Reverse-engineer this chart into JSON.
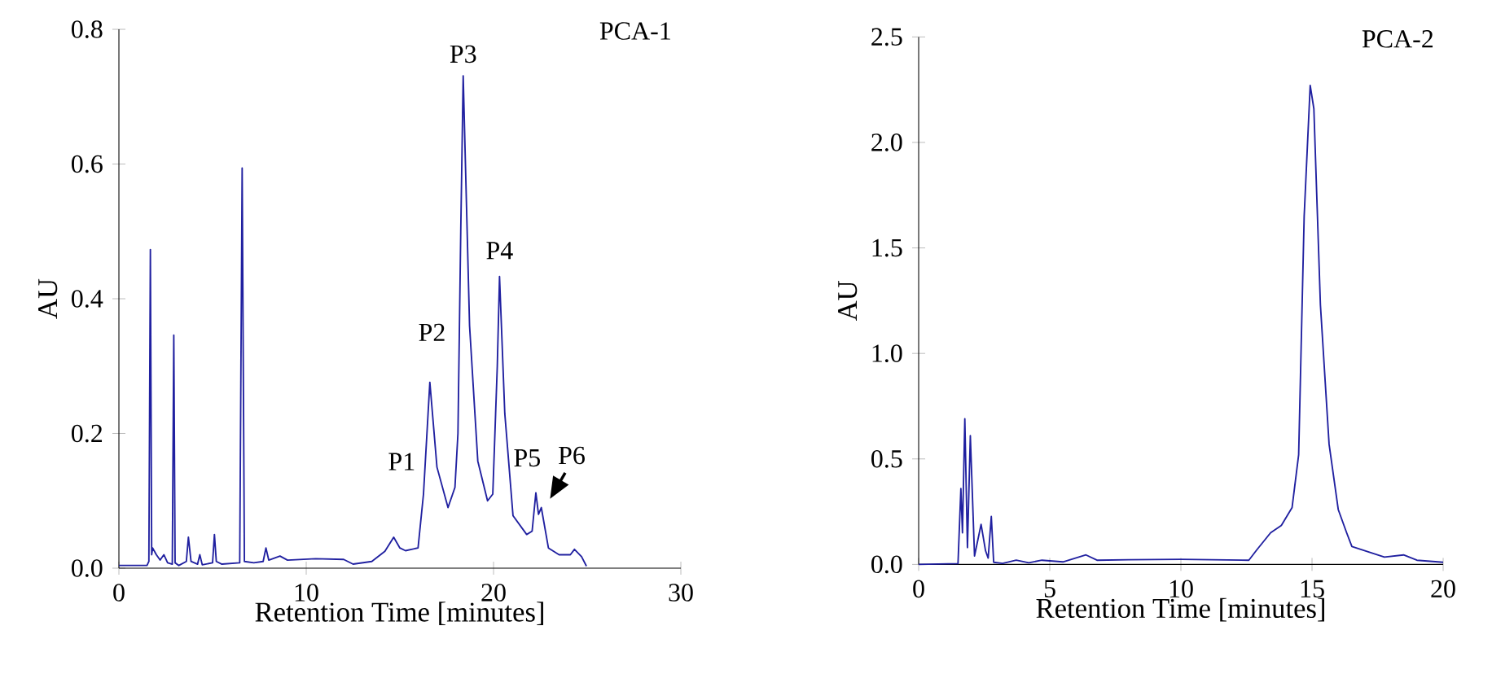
{
  "chart_data": [
    {
      "type": "line",
      "title": "PCA-1",
      "xlabel": "Retention Time [minutes]",
      "ylabel": "AU",
      "xlim": [
        0,
        30
      ],
      "ylim": [
        0,
        0.8
      ],
      "xticks": [
        0,
        10,
        20,
        30
      ],
      "yticks": [
        {
          "value": 0,
          "label": "0.0"
        },
        {
          "value": 0.2,
          "label": "0.2"
        },
        {
          "value": 0.4,
          "label": "0.4"
        },
        {
          "value": 0.6,
          "label": "0.6"
        },
        {
          "value": 0.8,
          "label": "0.8"
        }
      ],
      "series": [
        {
          "color": "#2020a0",
          "x": [
            0,
            1.5,
            1.6,
            1.68,
            1.75,
            1.8,
            2.0,
            2.2,
            2.4,
            2.6,
            2.85,
            2.93,
            3.0,
            3.2,
            3.6,
            3.71,
            3.85,
            4.2,
            4.32,
            4.45,
            5.0,
            5.1,
            5.2,
            5.5,
            6.45,
            6.58,
            6.7,
            7.2,
            7.7,
            7.85,
            8.0,
            8.6,
            9.0,
            10.5,
            12.0,
            12.5,
            13.5,
            14.2,
            14.67,
            15.0,
            15.3,
            15.97,
            16.26,
            16.6,
            16.98,
            17.57,
            17.94,
            18.1,
            18.25,
            18.38,
            18.72,
            19.16,
            19.68,
            19.96,
            20.2,
            20.32,
            20.6,
            21.04,
            21.77,
            22.06,
            22.26,
            22.4,
            22.55,
            22.93,
            23.5,
            24.1,
            24.32,
            24.7,
            24.96
          ],
          "values": [
            0.004,
            0.004,
            0.01,
            0.473,
            0.02,
            0.03,
            0.02,
            0.012,
            0.02,
            0.008,
            0.006,
            0.346,
            0.008,
            0.004,
            0.01,
            0.046,
            0.01,
            0.006,
            0.02,
            0.005,
            0.008,
            0.05,
            0.01,
            0.006,
            0.008,
            0.594,
            0.01,
            0.008,
            0.01,
            0.03,
            0.012,
            0.018,
            0.012,
            0.014,
            0.013,
            0.006,
            0.01,
            0.025,
            0.046,
            0.03,
            0.026,
            0.03,
            0.11,
            0.276,
            0.15,
            0.09,
            0.12,
            0.2,
            0.5,
            0.731,
            0.36,
            0.159,
            0.1,
            0.11,
            0.3,
            0.433,
            0.23,
            0.078,
            0.05,
            0.055,
            0.112,
            0.08,
            0.09,
            0.03,
            0.02,
            0.02,
            0.028,
            0.017,
            0.003
          ]
        }
      ],
      "annotations": [
        {
          "text": "P1",
          "x": 16.26,
          "y": 0.11
        },
        {
          "text": "P2",
          "x": 16.6,
          "y": 0.276
        },
        {
          "text": "P3",
          "x": 18.38,
          "y": 0.731
        },
        {
          "text": "P4",
          "x": 20.32,
          "y": 0.433
        },
        {
          "text": "P5",
          "x": 22.26,
          "y": 0.112
        },
        {
          "text": "P6",
          "x": 22.55,
          "y": 0.09
        }
      ]
    },
    {
      "type": "line",
      "title": "PCA-2",
      "xlabel": "Retention Time [minutes]",
      "ylabel": "AU",
      "xlim": [
        0,
        20
      ],
      "ylim": [
        0,
        2.5
      ],
      "xticks": [
        0,
        5,
        10,
        15,
        20
      ],
      "yticks": [
        {
          "value": 0,
          "label": "0.0"
        },
        {
          "value": 0.5,
          "label": "0.5"
        },
        {
          "value": 1,
          "label": "1.0"
        },
        {
          "value": 1.5,
          "label": "1.5"
        },
        {
          "value": 2,
          "label": "2.0"
        },
        {
          "value": 2.5,
          "label": "2.5"
        }
      ],
      "series": [
        {
          "color": "#2020a0",
          "x": [
            0,
            1.5,
            1.61,
            1.67,
            1.76,
            1.86,
            1.97,
            2.13,
            2.38,
            2.55,
            2.65,
            2.77,
            2.86,
            3.2,
            3.72,
            4.2,
            4.7,
            5.5,
            6.38,
            6.8,
            8.0,
            10.0,
            12.59,
            12.9,
            13.42,
            13.83,
            14.24,
            14.49,
            14.7,
            14.93,
            15.07,
            15.32,
            15.65,
            16.0,
            16.32,
            16.52,
            17.14,
            17.76,
            18.49,
            19.0,
            20.0
          ],
          "values": [
            0,
            0.004,
            0.36,
            0.15,
            0.69,
            0.08,
            0.61,
            0.04,
            0.19,
            0.065,
            0.03,
            0.227,
            0.01,
            0.005,
            0.02,
            0.008,
            0.02,
            0.012,
            0.045,
            0.02,
            0.022,
            0.024,
            0.02,
            0.07,
            0.15,
            0.185,
            0.27,
            0.52,
            1.65,
            2.27,
            2.16,
            1.23,
            0.57,
            0.26,
            0.15,
            0.085,
            0.06,
            0.035,
            0.045,
            0.02,
            0.01
          ]
        }
      ]
    }
  ]
}
